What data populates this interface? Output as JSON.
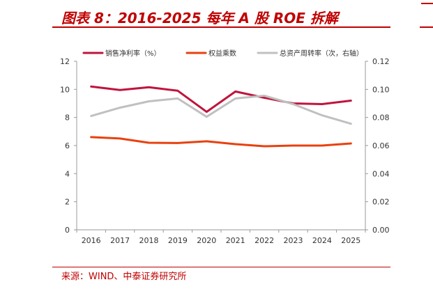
{
  "header": {
    "title": "图表 8：2016-2025 每年 A 股 ROE 拆解"
  },
  "footer": {
    "source": "来源：WIND、中泰证券研究所"
  },
  "chart_data": {
    "type": "line",
    "title": "图表 8：2016-2025 每年 A 股 ROE 拆解",
    "categories": [
      "2016",
      "2017",
      "2018",
      "2019",
      "2020",
      "2021",
      "2022",
      "2023",
      "2024",
      "2025"
    ],
    "series": [
      {
        "name": "销售净利率（%）",
        "axis": "left",
        "color": "#c0143c",
        "values": [
          10.2,
          9.95,
          10.15,
          9.9,
          8.4,
          9.85,
          9.4,
          9.0,
          8.95,
          9.2
        ]
      },
      {
        "name": "权益乘数",
        "axis": "left",
        "color": "#e8410f",
        "values": [
          6.6,
          6.5,
          6.2,
          6.18,
          6.3,
          6.1,
          5.95,
          6.0,
          6.0,
          6.15
        ]
      },
      {
        "name": "总资产周转率（次，右轴）",
        "axis": "right",
        "color": "#c0c0c0",
        "values": [
          0.081,
          0.087,
          0.0915,
          0.0935,
          0.0805,
          0.0935,
          0.0955,
          0.0895,
          0.0815,
          0.0755
        ]
      }
    ],
    "y_left": {
      "min": 0,
      "max": 12,
      "ticks": [
        "0",
        "2",
        "4",
        "6",
        "8",
        "10",
        "12"
      ]
    },
    "y_right": {
      "min": 0,
      "max": 0.12,
      "ticks": [
        "0.00",
        "0.02",
        "0.04",
        "0.06",
        "0.08",
        "0.10",
        "0.12"
      ]
    },
    "legend_position": "top",
    "grid": false
  }
}
